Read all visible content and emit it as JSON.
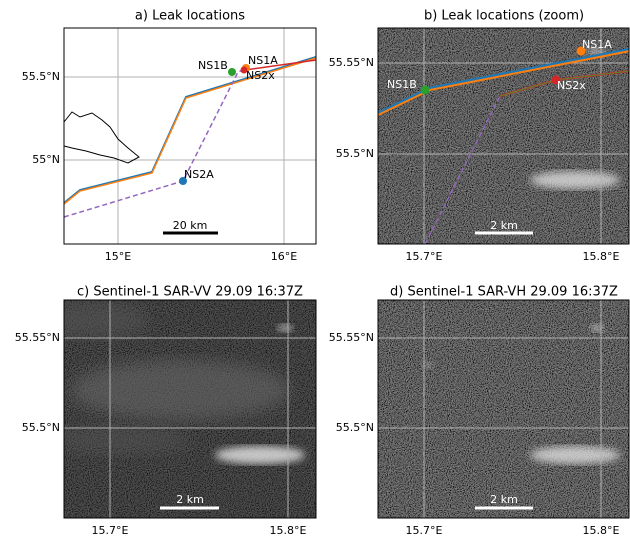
{
  "panels": [
    {
      "title": "a) Leak locations",
      "yticks": [
        "55.5°N",
        "55°N"
      ],
      "xticks": [
        "15°E",
        "16°E"
      ],
      "scale_bar": "20 km",
      "labels": [
        "NS1A",
        "NS1B",
        "NS2x",
        "NS2A"
      ]
    },
    {
      "title": "b) Leak locations (zoom)",
      "yticks": [
        "55.55°N",
        "55.5°N"
      ],
      "xticks": [
        "15.7°E",
        "15.8°E"
      ],
      "scale_bar": "2 km",
      "labels": [
        "NS1A",
        "NS1B",
        "NS2x"
      ]
    },
    {
      "title": "c) Sentinel-1 SAR-VV 29.09 16:37Z",
      "yticks": [
        "55.55°N",
        "55.5°N"
      ],
      "xticks": [
        "15.7°E",
        "15.8°E"
      ],
      "scale_bar": "2 km"
    },
    {
      "title": "d) Sentinel-1 SAR-VH 29.09 16:37Z",
      "yticks": [
        "55.55°N",
        "55.5°N"
      ],
      "xticks": [
        "15.7°E",
        "15.8°E"
      ],
      "scale_bar": "2 km"
    }
  ]
}
